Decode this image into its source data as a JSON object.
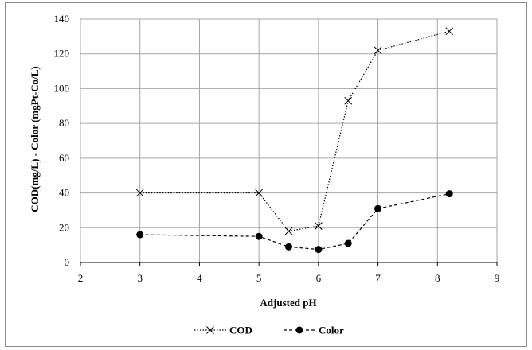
{
  "chart_data": {
    "type": "line",
    "xlabel": "Adjusted pH",
    "ylabel": "COD(mg/L)  - Color (mgPt-Co/L)",
    "xlim": [
      2,
      9
    ],
    "ylim": [
      0,
      140
    ],
    "x_ticks": [
      "2",
      "3",
      "4",
      "5",
      "6",
      "7",
      "8",
      "9"
    ],
    "y_ticks": [
      "0",
      "20",
      "40",
      "60",
      "80",
      "100",
      "120",
      "140"
    ],
    "grid": true,
    "legend_position": "bottom",
    "series": [
      {
        "name": "COD",
        "marker": "x",
        "line_style": "dotted",
        "color": "#000000",
        "points": [
          {
            "x": 3,
            "y": 40
          },
          {
            "x": 5,
            "y": 40
          },
          {
            "x": 5.5,
            "y": 18
          },
          {
            "x": 6,
            "y": 21
          },
          {
            "x": 6.5,
            "y": 93
          },
          {
            "x": 7,
            "y": 122
          },
          {
            "x": 8.2,
            "y": 133
          }
        ]
      },
      {
        "name": "Color",
        "marker": "circle",
        "line_style": "dashed",
        "color": "#000000",
        "points": [
          {
            "x": 3,
            "y": 16
          },
          {
            "x": 5,
            "y": 15
          },
          {
            "x": 5.5,
            "y": 9
          },
          {
            "x": 6,
            "y": 7.5
          },
          {
            "x": 6.5,
            "y": 11
          },
          {
            "x": 7,
            "y": 31
          },
          {
            "x": 8.2,
            "y": 39.5
          }
        ]
      }
    ]
  }
}
